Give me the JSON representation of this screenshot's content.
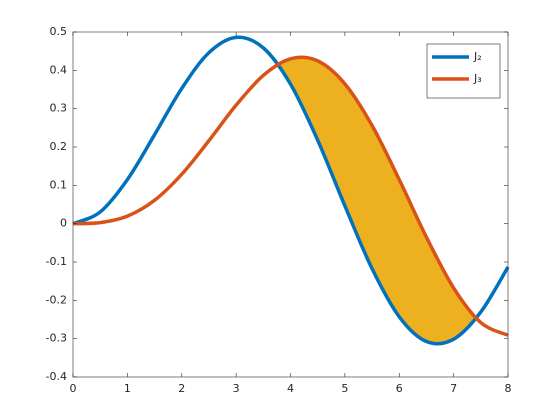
{
  "chart_data": {
    "type": "line",
    "x": [
      0,
      0.5,
      1,
      1.5,
      2,
      2.5,
      3,
      3.5,
      4,
      4.5,
      5,
      5.5,
      6,
      6.5,
      7,
      7.5,
      8
    ],
    "series": [
      {
        "name": "J₂",
        "color": "#0072BD",
        "values": [
          0,
          0.0306,
          0.1149,
          0.2321,
          0.3528,
          0.4461,
          0.4861,
          0.4586,
          0.3641,
          0.2178,
          0.0466,
          -0.1173,
          -0.2429,
          -0.3074,
          -0.3014,
          -0.2303,
          -0.113
        ]
      },
      {
        "name": "J₃",
        "color": "#D95319",
        "values": [
          0,
          0.0026,
          0.0196,
          0.061,
          0.1289,
          0.2166,
          0.3091,
          0.3868,
          0.4302,
          0.4247,
          0.3648,
          0.2561,
          0.1148,
          -0.0353,
          -0.1676,
          -0.2581,
          -0.2911
        ]
      }
    ],
    "fill_color": "#EDB120",
    "xlim": [
      0,
      8
    ],
    "xticks": [
      0,
      1,
      2,
      3,
      4,
      5,
      6,
      7,
      8
    ],
    "ylim": [
      -0.4,
      0.5
    ],
    "yticks": [
      -0.4,
      -0.3,
      -0.2,
      -0.1,
      0,
      0.1,
      0.2,
      0.3,
      0.4,
      0.5
    ],
    "legend": "upper-right"
  }
}
